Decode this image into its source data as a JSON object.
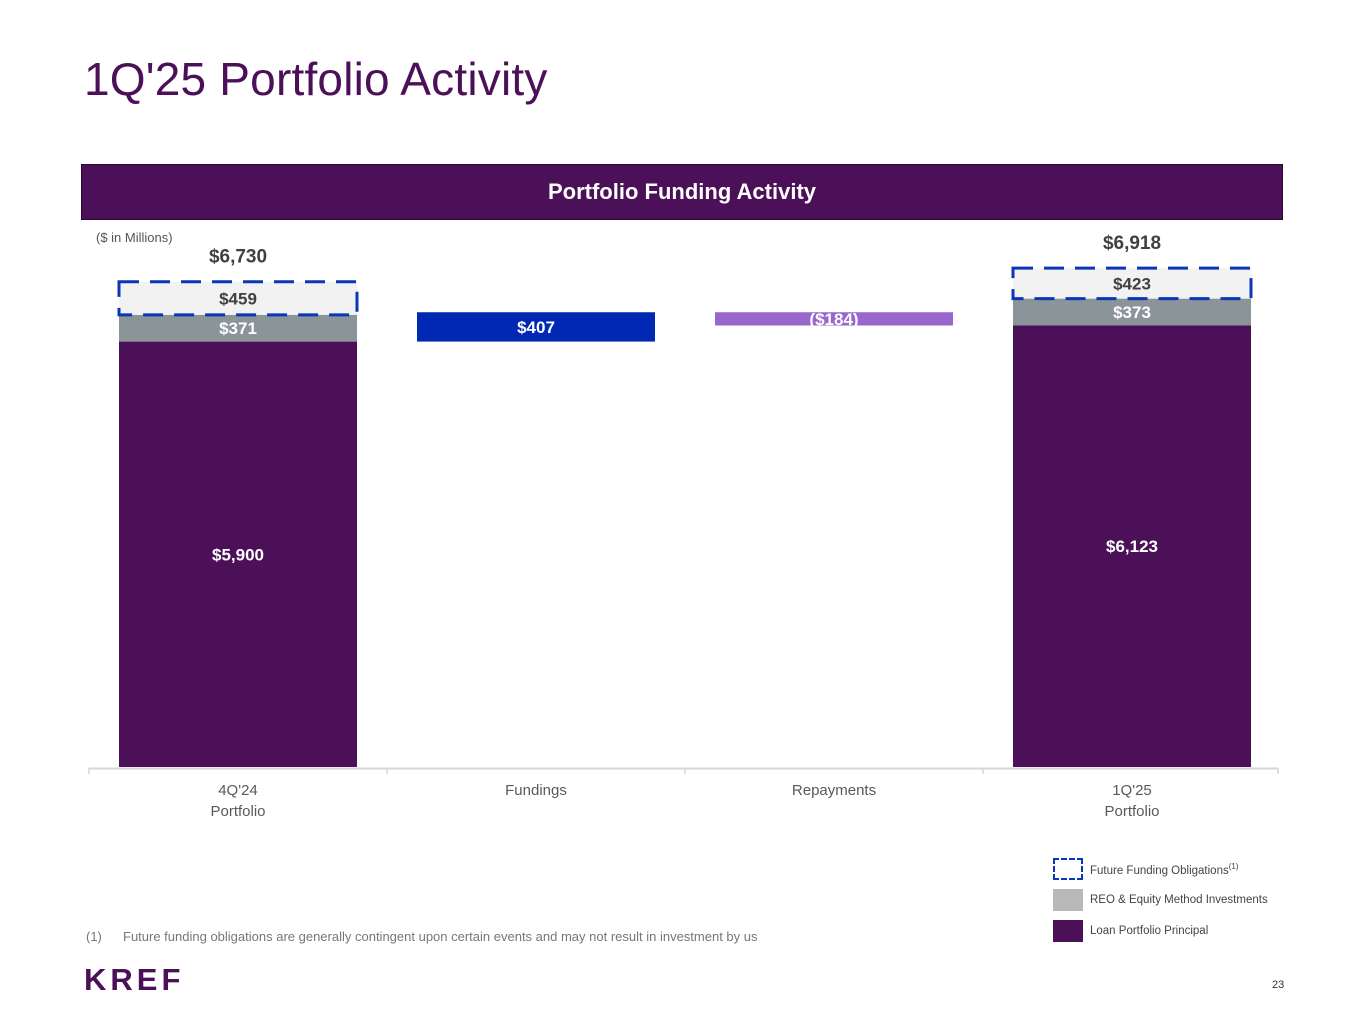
{
  "slide": {
    "title": "1Q'25 Portfolio Activity",
    "banner": "Portfolio Funding Activity",
    "units_note": "($ in Millions)",
    "footnote_number": "(1)",
    "footnote_text": "Future funding obligations are generally contingent upon certain events and may not result in investment by us",
    "logo": "KREF",
    "page_number": "23"
  },
  "legend": {
    "items": [
      {
        "label": "Future Funding Obligations",
        "superscript": "(1)"
      },
      {
        "label": "REO & Equity Method Investments",
        "superscript": ""
      },
      {
        "label": "Loan Portfolio Principal",
        "superscript": ""
      }
    ]
  },
  "chart_data": {
    "type": "bar",
    "subtype": "waterfall-stacked",
    "title": "Portfolio Funding Activity",
    "ylabel": "($ in Millions)",
    "ylim": [
      0,
      7600
    ],
    "categories": [
      "4Q'24\nPortfolio",
      "Fundings",
      "Repayments",
      "1Q'25\nPortfolio"
    ],
    "totals": [
      "$6,730",
      "",
      "",
      "$6,918"
    ],
    "segments": [
      {
        "category": 0,
        "series": "Loan Portfolio Principal",
        "base": 0,
        "value": 5900,
        "label": "$5,900"
      },
      {
        "category": 0,
        "series": "REO & Equity Method Investments",
        "base": 5900,
        "value": 371,
        "label": "$371"
      },
      {
        "category": 0,
        "series": "Future Funding Obligations",
        "base": 6271,
        "value": 459,
        "label": "$459"
      },
      {
        "category": 1,
        "series": "Fundings",
        "base": 5900,
        "value": 407,
        "label": "$407"
      },
      {
        "category": 2,
        "series": "Repayments",
        "base": 6123,
        "value": 184,
        "label": "($184)"
      },
      {
        "category": 3,
        "series": "Loan Portfolio Principal",
        "base": 0,
        "value": 6123,
        "label": "$6,123"
      },
      {
        "category": 3,
        "series": "REO & Equity Method Investments",
        "base": 6123,
        "value": 373,
        "label": "$373"
      },
      {
        "category": 3,
        "series": "Future Funding Obligations",
        "base": 6496,
        "value": 423,
        "label": "$423"
      }
    ],
    "colors": {
      "Loan Portfolio Principal": "#4b1058",
      "REO & Equity Method Investments": "#8a9499",
      "Future Funding Obligations": "#f2f2f2",
      "Fundings": "#0028b4",
      "Repayments": "#9966cc",
      "dashed_outline": "#0a36b8"
    }
  }
}
